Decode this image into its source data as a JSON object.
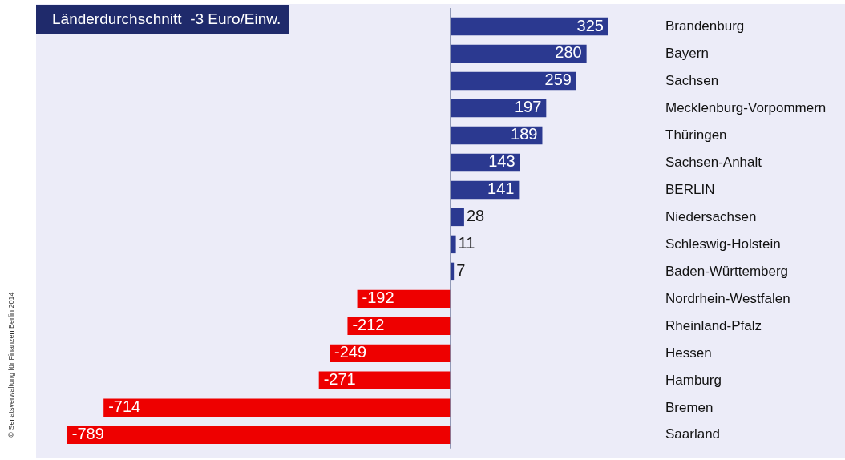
{
  "chart_data": {
    "type": "bar",
    "orientation": "horizontal",
    "title": "Länderdurchschnitt  -3 Euro/Einw.",
    "categories": [
      "Brandenburg",
      "Bayern",
      "Sachsen",
      "Mecklenburg-Vorpommern",
      "Thüringen",
      "Sachsen-Anhalt",
      "BERLIN",
      "Niedersachsen",
      "Schleswig-Holstein",
      "Baden-Württemberg",
      "Nordrhein-Westfalen",
      "Rheinland-Pfalz",
      "Hessen",
      "Hamburg",
      "Bremen",
      "Saarland"
    ],
    "values": [
      325,
      280,
      259,
      197,
      189,
      143,
      141,
      28,
      11,
      7,
      -192,
      -212,
      -249,
      -271,
      -714,
      -789
    ],
    "colors": [
      "#2b3990",
      "#2b3990",
      "#2b3990",
      "#2b3990",
      "#2b3990",
      "#2b3990",
      "#2b3990",
      "#2b3990",
      "#2b3990",
      "#2b3990",
      "#ee0000",
      "#ee0000",
      "#ee0000",
      "#ee0000",
      "#ee0000",
      "#ee0000"
    ],
    "data_labels": true,
    "legend": false,
    "ref_lines": [
      {
        "axis": "x",
        "value": 0,
        "color": "#7d87a8"
      }
    ],
    "annotations": [
      "© Senatsverwaltung für Finanzen Berlin 2014"
    ]
  }
}
